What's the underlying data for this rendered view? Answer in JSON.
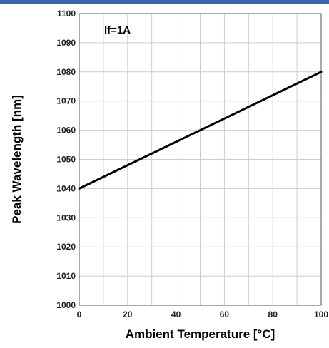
{
  "chart_data": {
    "type": "line",
    "title": "",
    "xlabel": "Ambient Temperature [°C]",
    "ylabel": "Peak Wavelength [nm]",
    "annotation": "If=1A",
    "xlim": [
      0,
      100
    ],
    "ylim": [
      1000,
      1100
    ],
    "x_ticks": [
      0,
      20,
      40,
      60,
      80,
      100
    ],
    "x_tick_labels": [
      "0",
      "20",
      "40",
      "60",
      "80",
      "100"
    ],
    "x_minor_step": 10,
    "y_ticks": [
      1000,
      1010,
      1020,
      1030,
      1040,
      1050,
      1060,
      1070,
      1080,
      1090,
      1100
    ],
    "y_tick_labels": [
      "1000",
      "1010",
      "1020",
      "1030",
      "1040",
      "1050",
      "1060",
      "1070",
      "1080",
      "1090",
      "1100"
    ],
    "grid": true,
    "series": [
      {
        "x": [
          0,
          100
        ],
        "y": [
          1040,
          1080
        ]
      }
    ],
    "colors": {
      "line": "#000000",
      "grid": "#cccccc",
      "frame": "#555555",
      "top_bar": "#3b64a8"
    }
  }
}
